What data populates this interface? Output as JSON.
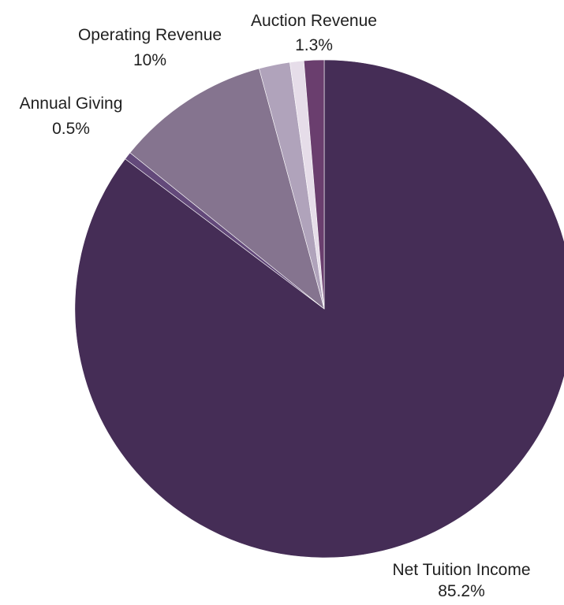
{
  "chart_data": {
    "type": "pie",
    "title": "",
    "start_angle_deg": 0,
    "direction": "clockwise",
    "slices": [
      {
        "label": "Net Tuition Income",
        "value": 85.2,
        "value_label": "85.2%",
        "color": "#452d56"
      },
      {
        "label": "Annual Giving",
        "value": 0.5,
        "value_label": "0.5%",
        "color": "#63497a"
      },
      {
        "label": "Operating Revenue",
        "value": 10,
        "value_label": "10%",
        "color": "#85748f"
      },
      {
        "label": "",
        "value": 2.0,
        "value_label": "",
        "color": "#b0a3bb"
      },
      {
        "label": "",
        "value": 0.9,
        "value_label": "",
        "color": "#e6dde9"
      },
      {
        "label": "Auction Revenue",
        "value": 1.3,
        "value_label": "1.3%",
        "color": "#6a3e6e"
      }
    ],
    "legend": "none"
  }
}
